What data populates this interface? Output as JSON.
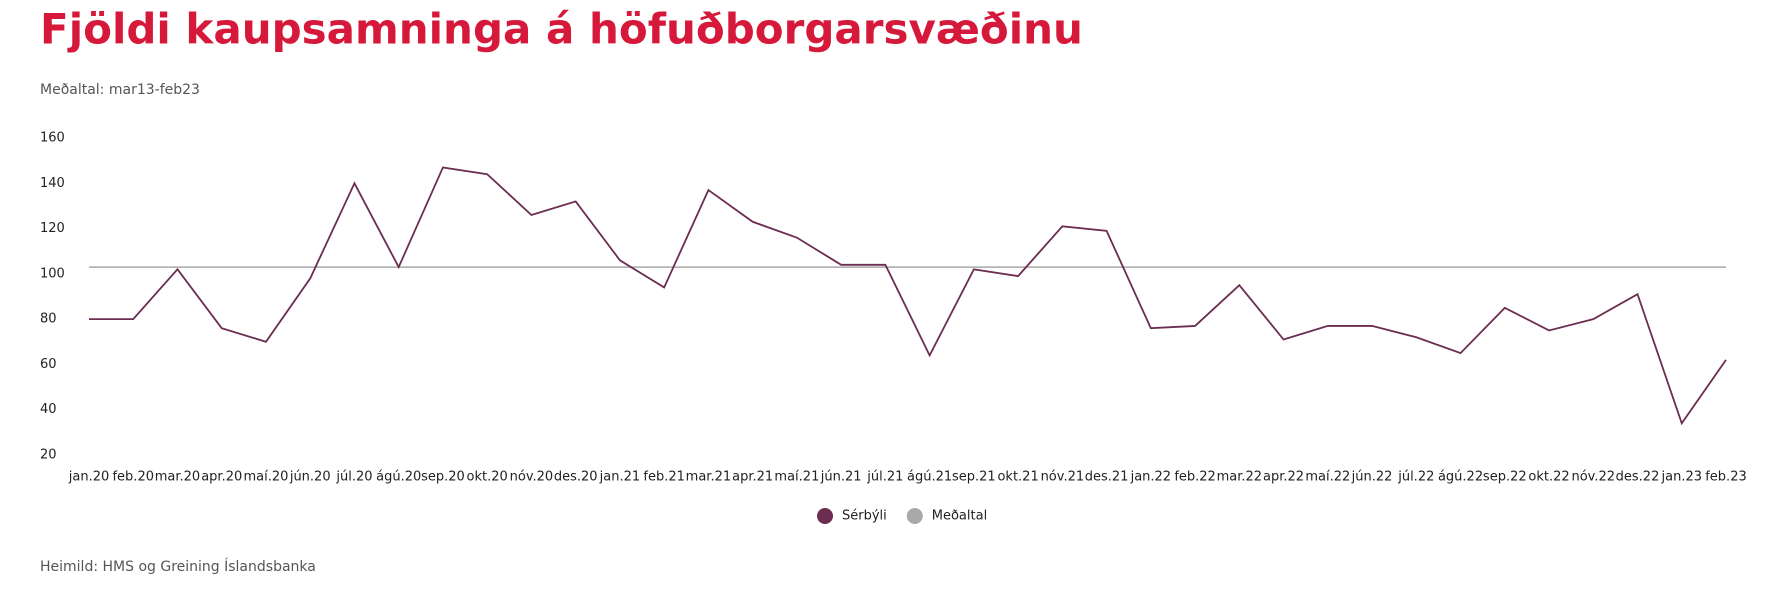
{
  "chart_data": {
    "type": "line",
    "title": "Fjöldi kaupsamninga á höfuðborgarsvæðinu",
    "subtitle": "Meðaltal: mar13-feb23",
    "source": "Heimild: HMS og Greining Íslandsbanka",
    "categories": [
      "jan.20",
      "feb.20",
      "mar.20",
      "apr.20",
      "maí.20",
      "jún.20",
      "júl.20",
      "ágú.20",
      "sep.20",
      "okt.20",
      "nóv.20",
      "des.20",
      "jan.21",
      "feb.21",
      "mar.21",
      "apr.21",
      "maí.21",
      "jún.21",
      "júl.21",
      "ágú.21",
      "sep.21",
      "okt.21",
      "nóv.21",
      "des.21",
      "jan.22",
      "feb.22",
      "mar.22",
      "apr.22",
      "maí.22",
      "jún.22",
      "júl.22",
      "ágú.22",
      "sep.22",
      "okt.22",
      "nóv.22",
      "des.22",
      "jan.23",
      "feb.23"
    ],
    "series": [
      {
        "name": "Sérbýli",
        "color": "#6b2d52",
        "values": [
          80,
          80,
          102,
          76,
          70,
          98,
          140,
          103,
          147,
          144,
          126,
          132,
          106,
          94,
          137,
          123,
          116,
          104,
          104,
          64,
          102,
          99,
          121,
          119,
          76,
          77,
          95,
          71,
          77,
          77,
          72,
          65,
          85,
          75,
          80,
          91,
          34,
          62
        ]
      },
      {
        "name": "Meðaltal",
        "color": "#a8a8a8",
        "values": [
          103,
          103,
          103,
          103,
          103,
          103,
          103,
          103,
          103,
          103,
          103,
          103,
          103,
          103,
          103,
          103,
          103,
          103,
          103,
          103,
          103,
          103,
          103,
          103,
          103,
          103,
          103,
          103,
          103,
          103,
          103,
          103,
          103,
          103,
          103,
          103,
          103,
          103
        ]
      }
    ],
    "ylim": [
      20,
      160
    ],
    "yticks": [
      20,
      40,
      60,
      80,
      100,
      120,
      140,
      160
    ],
    "grid": false
  }
}
